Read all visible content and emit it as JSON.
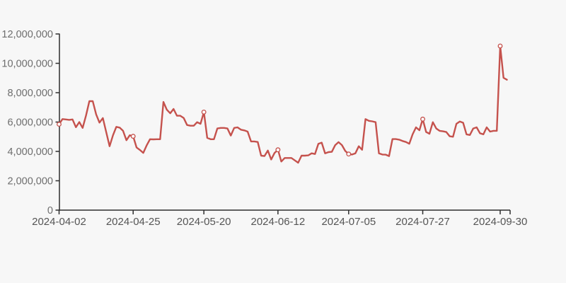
{
  "chart": {
    "background": "#f7f7f7",
    "axis_color": "#2f2f2f",
    "y_label_color": "#6e6e6e",
    "x_label_color": "#555555",
    "line_color": "#c5524d",
    "marker_fill": "#ffffff"
  },
  "chart_data": {
    "type": "line",
    "title": "",
    "xlabel": "",
    "ylabel": "",
    "grid": false,
    "legend": false,
    "ylim": [
      0,
      12000000
    ],
    "y_ticks": [
      0,
      2000000,
      4000000,
      6000000,
      8000000,
      10000000,
      12000000
    ],
    "y_tick_labels": [
      "0",
      "2,000,000",
      "4,000,000",
      "6,000,000",
      "8,000,000",
      "10,000,000",
      "12,000,000"
    ],
    "x_tick_labels": [
      "2024-04-02",
      "2024-04-25",
      "2024-05-20",
      "2024-06-12",
      "2024-07-05",
      "2024-07-27",
      "2024-09-30"
    ],
    "marker_indices": [
      0,
      22,
      43,
      65,
      86,
      108,
      131
    ],
    "marker_values": [
      5850000,
      5030000,
      6680000,
      4110000,
      3820000,
      6200000,
      11180000
    ],
    "values": [
      5850000,
      6200000,
      6180000,
      6150000,
      6180000,
      5650000,
      6000000,
      5600000,
      6450000,
      7420000,
      7420000,
      6520000,
      5960000,
      6270000,
      5320000,
      4350000,
      5100000,
      5670000,
      5620000,
      5400000,
      4760000,
      5100000,
      5030000,
      4270000,
      4100000,
      3900000,
      4400000,
      4830000,
      4820000,
      4830000,
      4830000,
      7370000,
      6840000,
      6600000,
      6890000,
      6430000,
      6430000,
      6280000,
      5800000,
      5750000,
      5750000,
      5990000,
      5880000,
      6680000,
      4920000,
      4830000,
      4830000,
      5560000,
      5600000,
      5600000,
      5560000,
      5080000,
      5600000,
      5640000,
      5480000,
      5430000,
      5350000,
      4680000,
      4680000,
      4640000,
      3710000,
      3680000,
      4060000,
      3450000,
      3900000,
      4110000,
      3310000,
      3550000,
      3550000,
      3550000,
      3390000,
      3230000,
      3710000,
      3710000,
      3730000,
      3870000,
      3820000,
      4520000,
      4600000,
      3870000,
      3950000,
      3970000,
      4430000,
      4630000,
      4430000,
      4030000,
      3820000,
      3790000,
      3870000,
      4350000,
      4110000,
      6200000,
      6080000,
      6050000,
      5990000,
      3870000,
      3790000,
      3780000,
      3680000,
      4840000,
      4840000,
      4800000,
      4710000,
      4640000,
      4520000,
      5160000,
      5640000,
      5440000,
      6200000,
      5320000,
      5200000,
      5990000,
      5560000,
      5400000,
      5370000,
      5320000,
      5030000,
      5000000,
      5880000,
      6040000,
      5950000,
      5160000,
      5120000,
      5560000,
      5640000,
      5240000,
      5160000,
      5640000,
      5350000,
      5400000,
      5400000,
      11180000,
      9010000,
      8880000
    ]
  }
}
